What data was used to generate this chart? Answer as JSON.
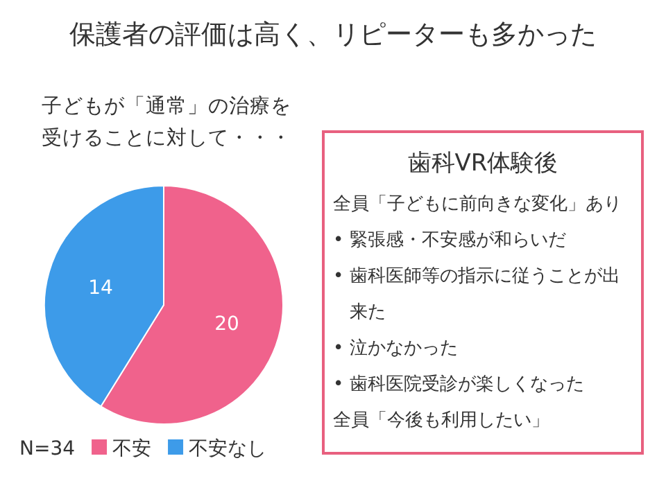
{
  "chart_data": [
    {
      "type": "pie",
      "title": "保護者の評価は高く、リピーターも多かった",
      "subtitle": "子どもが「通常」の治療を受けることに対して・・・",
      "categories": [
        "不安",
        "不安なし"
      ],
      "values": [
        20,
        14
      ],
      "colors": [
        "#f0628c",
        "#3d9be9"
      ],
      "data_labels": true,
      "legend": "bottom",
      "annotations": [
        "N=34"
      ]
    },
    {
      "type": "other",
      "title": "歯科VR体験後",
      "annotations": [
        "全員「子どもに前向きな変化」あり",
        "• 緊張感・不安感が和らいだ",
        "• 歯科医師等の指示に従うことが出来た",
        "• 泣かなかった",
        "• 歯科医院受診が楽しくなった",
        "全員「今後も利用したい」"
      ]
    }
  ]
}
